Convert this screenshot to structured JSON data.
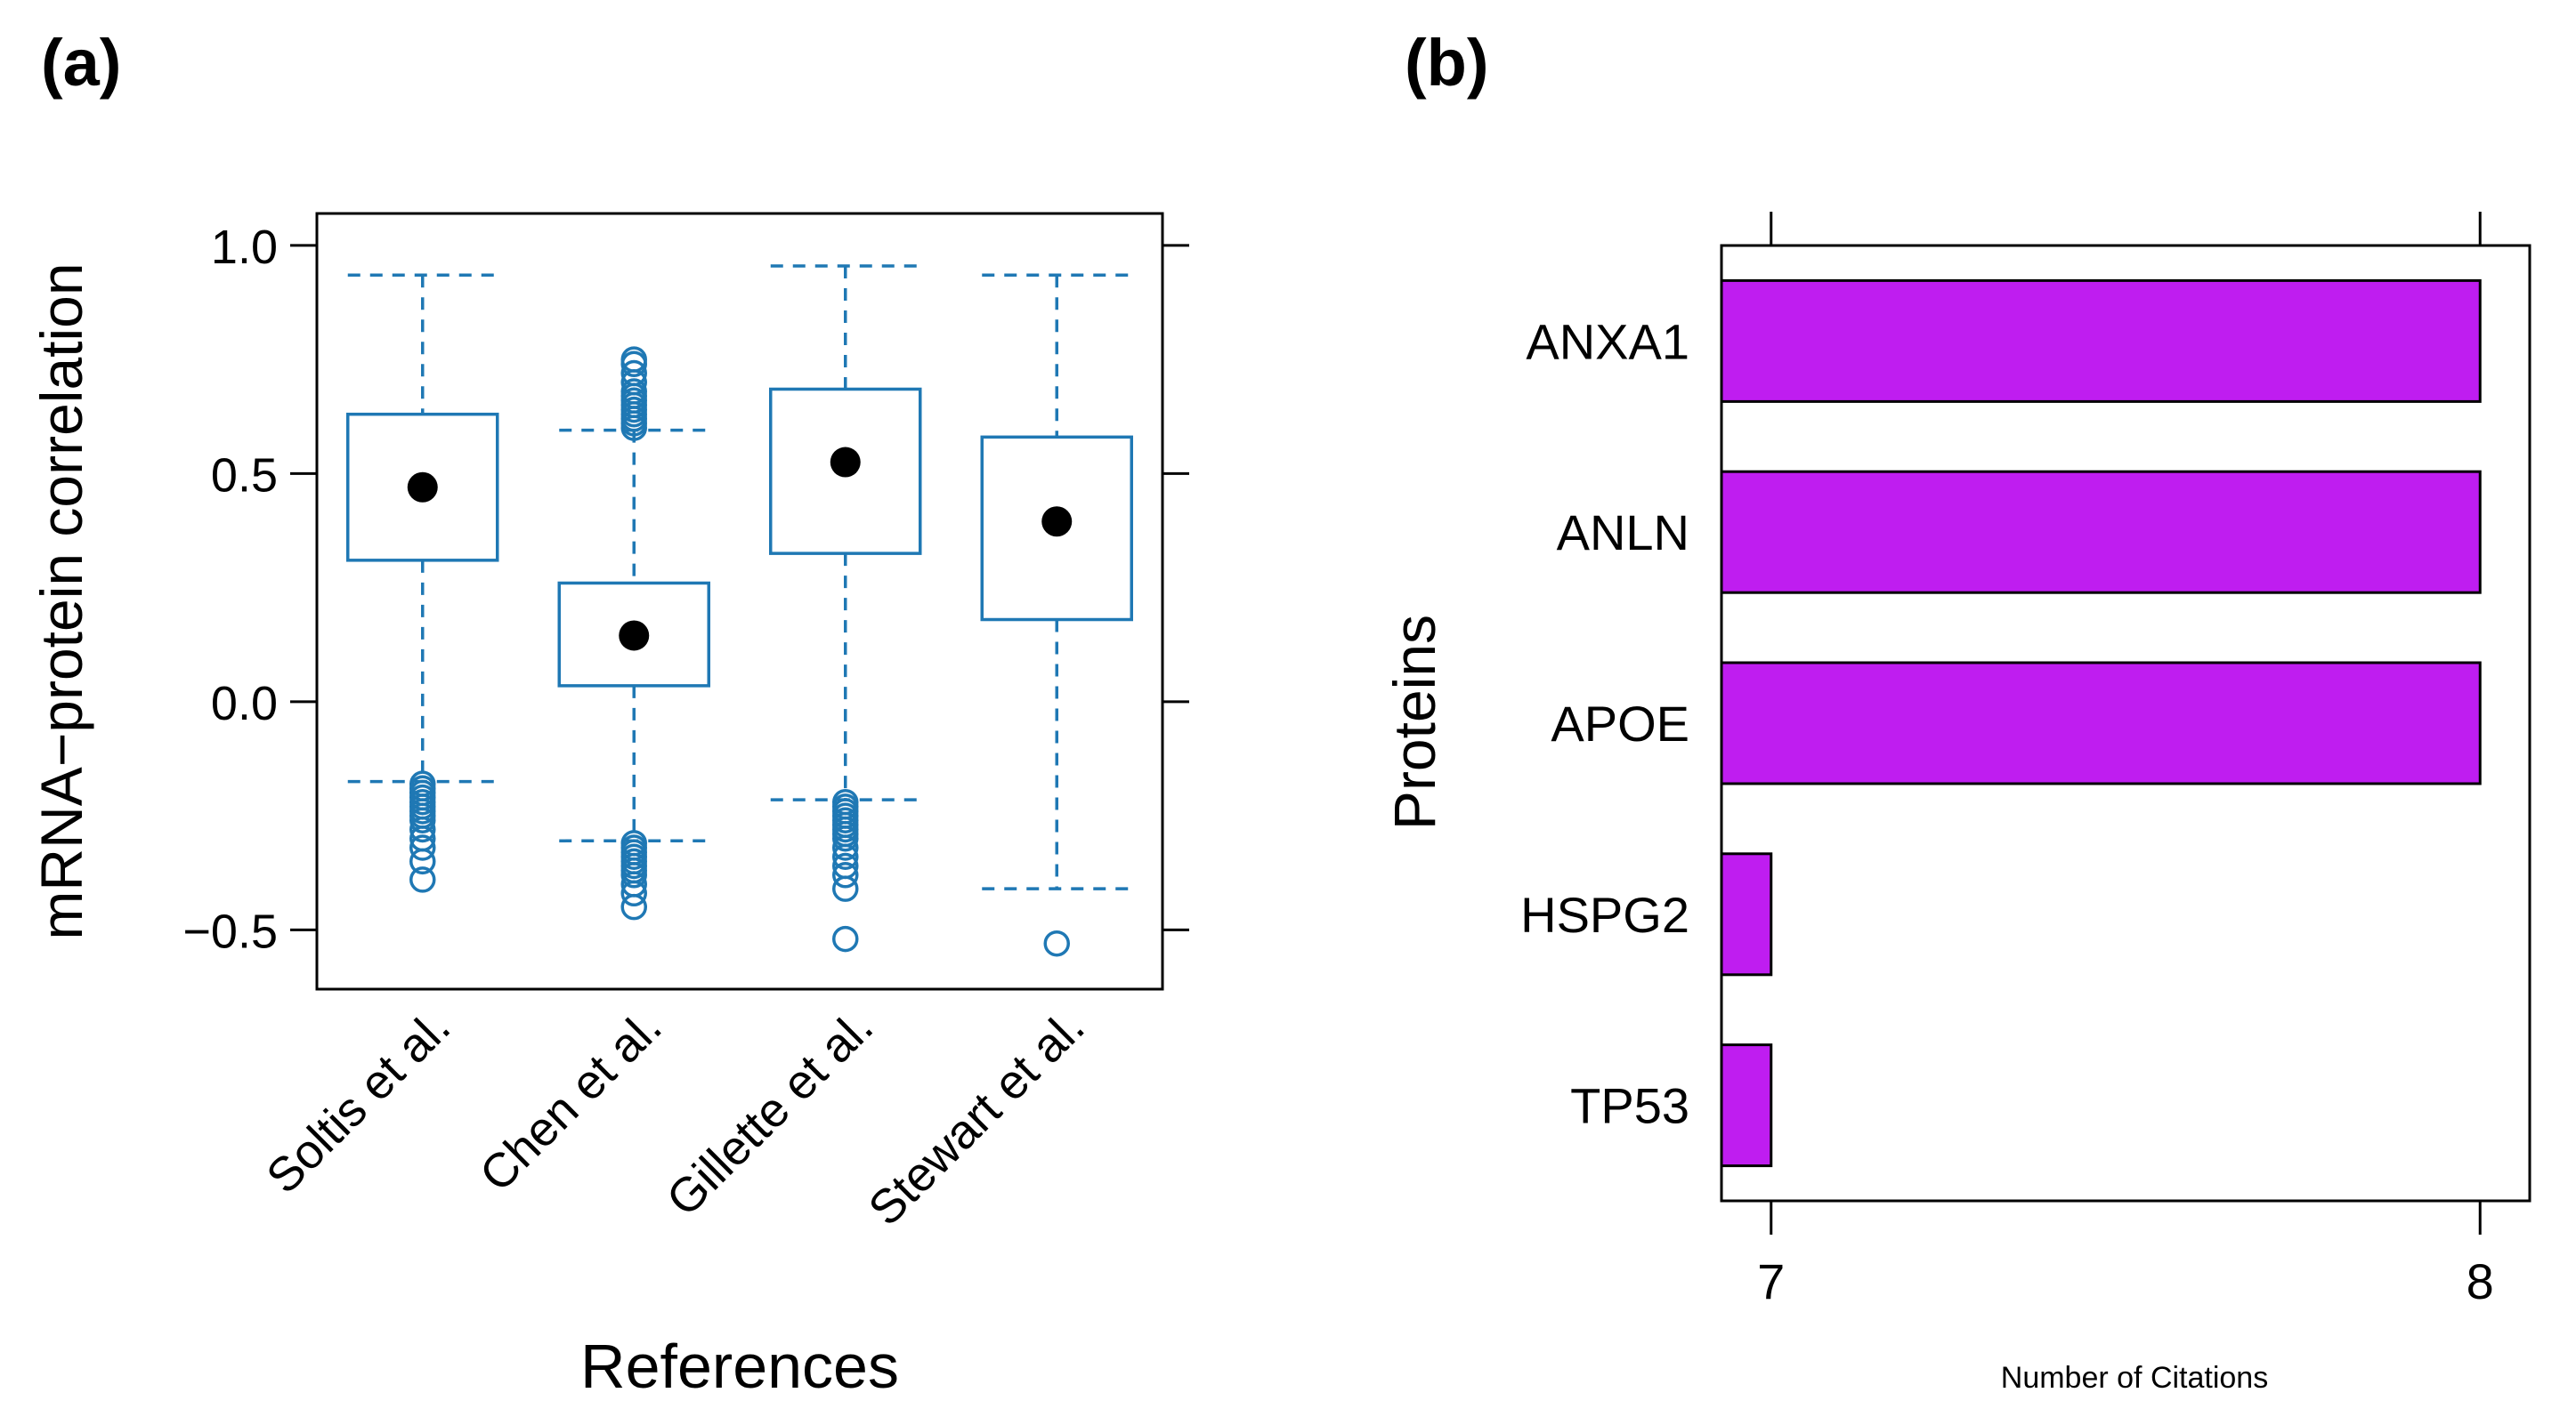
{
  "panel_labels": {
    "a": "(a)",
    "b": "(b)"
  },
  "colors": {
    "box": "#1f78b4",
    "median": "#000000",
    "bar": "#bf1df0",
    "axis": "#000000"
  },
  "chart_data": [
    {
      "type": "box",
      "panel": "(a)",
      "xlabel": "References",
      "ylabel": "mRNA−protein correlation",
      "ylim": [
        -0.63,
        1.07
      ],
      "yticks": [
        -0.5,
        0.0,
        0.5,
        1.0
      ],
      "ytick_labels": [
        "−0.5",
        "0.0",
        "0.5",
        "1.0"
      ],
      "categories": [
        "Soltis et al.",
        "Chen et al.",
        "Gillette et al.",
        "Stewart et al."
      ],
      "boxes": [
        {
          "name": "Soltis et al.",
          "q1": 0.31,
          "median": 0.47,
          "q3": 0.63,
          "whisker_low": -0.175,
          "whisker_high": 0.935,
          "outliers": [
            -0.18,
            -0.19,
            -0.2,
            -0.21,
            -0.22,
            -0.23,
            -0.24,
            -0.25,
            -0.26,
            -0.28,
            -0.3,
            -0.32,
            -0.35,
            -0.39
          ]
        },
        {
          "name": "Chen et al.",
          "q1": 0.035,
          "median": 0.145,
          "q3": 0.26,
          "whisker_low": -0.305,
          "whisker_high": 0.595,
          "outliers": [
            0.6,
            0.61,
            0.62,
            0.63,
            0.64,
            0.65,
            0.66,
            0.67,
            0.68,
            0.7,
            0.72,
            0.74,
            0.75,
            -0.31,
            -0.32,
            -0.33,
            -0.34,
            -0.35,
            -0.36,
            -0.37,
            -0.38,
            -0.4,
            -0.42,
            -0.45
          ]
        },
        {
          "name": "Gillette et al.",
          "q1": 0.325,
          "median": 0.525,
          "q3": 0.685,
          "whisker_low": -0.215,
          "whisker_high": 0.955,
          "outliers": [
            -0.22,
            -0.23,
            -0.24,
            -0.25,
            -0.26,
            -0.27,
            -0.28,
            -0.29,
            -0.3,
            -0.32,
            -0.34,
            -0.36,
            -0.38,
            -0.41,
            -0.52
          ]
        },
        {
          "name": "Stewart et al.",
          "q1": 0.18,
          "median": 0.395,
          "q3": 0.58,
          "whisker_low": -0.41,
          "whisker_high": 0.935,
          "outliers": [
            -0.53
          ]
        }
      ]
    },
    {
      "type": "bar",
      "orientation": "horizontal",
      "panel": "(b)",
      "xlabel": "Number of Citations",
      "ylabel": "Proteins",
      "xlim": [
        6.93,
        8.07
      ],
      "xticks": [
        7,
        8
      ],
      "xtick_labels": [
        "7",
        "8"
      ],
      "categories": [
        "ANXA1",
        "ANLN",
        "APOE",
        "HSPG2",
        "TP53"
      ],
      "values": [
        8,
        8,
        8,
        7,
        7
      ]
    }
  ]
}
